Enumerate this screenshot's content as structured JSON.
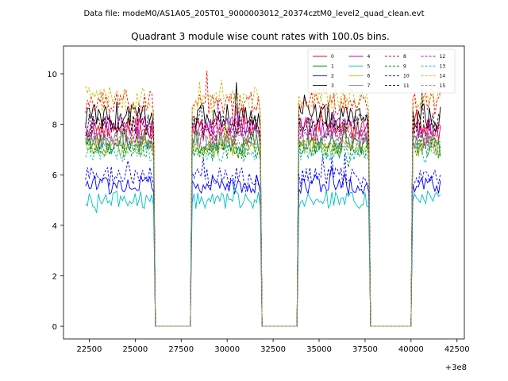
{
  "chart_data": {
    "type": "line",
    "suptitle": "Data file: modeM0/AS1A05_205T01_9000003012_20374cztM0_level2_quad_clean.evt",
    "title": "Quadrant 3 module wise count rates with 100.0s bins.",
    "xlabel": "",
    "ylabel": "",
    "x_offset_label": "+3e8",
    "xlim": [
      21100,
      42900
    ],
    "ylim": [
      -0.5,
      11.1
    ],
    "xticks": [
      22500,
      25000,
      27500,
      30000,
      32500,
      35000,
      37500,
      40000,
      42500
    ],
    "xtick_labels": [
      "22500",
      "25000",
      "27500",
      "30000",
      "32500",
      "35000",
      "37500",
      "40000",
      "42500"
    ],
    "yticks": [
      0,
      2,
      4,
      6,
      8,
      10
    ],
    "ytick_labels": [
      "0",
      "2",
      "4",
      "6",
      "8",
      "10"
    ],
    "bin_width_s": 100,
    "x_start": 22300,
    "x_end": 41600,
    "segments": [
      {
        "on_start": 22300,
        "on_end": 26000,
        "gap_end": 28000
      },
      {
        "on_start": 28100,
        "on_end": 31800,
        "gap_end": 33800
      },
      {
        "on_start": 33900,
        "on_end": 37700,
        "gap_end": 40000
      },
      {
        "on_start": 40100,
        "on_end": 41600,
        "gap_end": null
      }
    ],
    "series": [
      {
        "name": "0",
        "color": "#ff0000",
        "dash": "solid",
        "base": 7.8,
        "amp": 0.45
      },
      {
        "name": "1",
        "color": "#008000",
        "dash": "solid",
        "base": 7.2,
        "amp": 0.4
      },
      {
        "name": "2",
        "color": "#0000ff",
        "dash": "solid",
        "base": 5.6,
        "amp": 0.4
      },
      {
        "name": "3",
        "color": "#000000",
        "dash": "solid",
        "base": 8.3,
        "amp": 0.5
      },
      {
        "name": "4",
        "color": "#c000c0",
        "dash": "solid",
        "base": 7.9,
        "amp": 0.45
      },
      {
        "name": "5",
        "color": "#00bfbf",
        "dash": "solid",
        "base": 5.0,
        "amp": 0.35
      },
      {
        "name": "6",
        "color": "#bfbf00",
        "dash": "solid",
        "base": 7.1,
        "amp": 0.4
      },
      {
        "name": "7",
        "color": "#808080",
        "dash": "solid",
        "base": 7.4,
        "amp": 0.4
      },
      {
        "name": "8",
        "color": "#ff0000",
        "dash": "dashed",
        "base": 8.8,
        "amp": 0.5
      },
      {
        "name": "9",
        "color": "#008000",
        "dash": "dashed",
        "base": 7.0,
        "amp": 0.4
      },
      {
        "name": "10",
        "color": "#0000ff",
        "dash": "dashed",
        "base": 5.9,
        "amp": 0.4
      },
      {
        "name": "11",
        "color": "#000000",
        "dash": "dashed",
        "base": 8.0,
        "amp": 0.45
      },
      {
        "name": "12",
        "color": "#c000c0",
        "dash": "dashed",
        "base": 7.6,
        "amp": 0.45
      },
      {
        "name": "13",
        "color": "#00bfbf",
        "dash": "dashed",
        "base": 6.9,
        "amp": 0.4
      },
      {
        "name": "14",
        "color": "#bfbf00",
        "dash": "dashed",
        "base": 9.0,
        "amp": 0.5
      },
      {
        "name": "15",
        "color": "#808080",
        "dash": "dashed",
        "base": 7.3,
        "amp": 0.4
      }
    ],
    "legend": {
      "location": "upper right",
      "ncol": 4
    }
  }
}
